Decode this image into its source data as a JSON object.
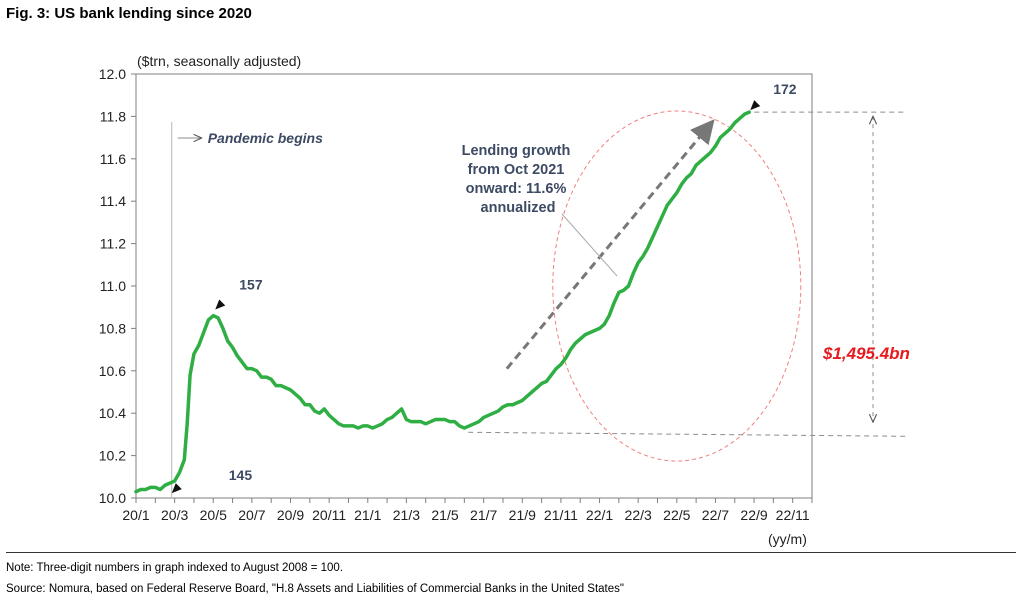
{
  "figure": {
    "title": "Fig. 3: US bank lending since 2020",
    "note": "Note: Three-digit numbers in graph indexed to August 2008 = 100.",
    "source": "Source: Nomura, based on Federal Reserve Board, \"H.8 Assets and Liabilities of Commercial Banks in the United States\""
  },
  "chart_data": {
    "type": "line",
    "title": "US bank lending since 2020",
    "ylabel": "($trn, seasonally adjusted)",
    "xlabel": "(yy/m)",
    "ylim": [
      10.0,
      12.0
    ],
    "yticks": [
      10.0,
      10.2,
      10.4,
      10.6,
      10.8,
      11.0,
      11.2,
      11.4,
      11.6,
      11.8,
      12.0
    ],
    "xlim": [
      0,
      35
    ],
    "xticks": [
      {
        "m": 0,
        "label": "20/1"
      },
      {
        "m": 2,
        "label": "20/3"
      },
      {
        "m": 4,
        "label": "20/5"
      },
      {
        "m": 6,
        "label": "20/7"
      },
      {
        "m": 8,
        "label": "20/9"
      },
      {
        "m": 10,
        "label": "20/11"
      },
      {
        "m": 12,
        "label": "21/1"
      },
      {
        "m": 14,
        "label": "21/3"
      },
      {
        "m": 16,
        "label": "21/5"
      },
      {
        "m": 18,
        "label": "21/7"
      },
      {
        "m": 20,
        "label": "21/9"
      },
      {
        "m": 22,
        "label": "21/11"
      },
      {
        "m": 24,
        "label": "22/1"
      },
      {
        "m": 26,
        "label": "22/3"
      },
      {
        "m": 28,
        "label": "22/5"
      },
      {
        "m": 30,
        "label": "22/7"
      },
      {
        "m": 32,
        "label": "22/9"
      },
      {
        "m": 34,
        "label": "22/11"
      }
    ],
    "series": [
      {
        "name": "US bank lending",
        "color": "#2fae44",
        "points": [
          [
            0,
            10.03
          ],
          [
            0.25,
            10.04
          ],
          [
            0.5,
            10.04
          ],
          [
            0.75,
            10.05
          ],
          [
            1,
            10.05
          ],
          [
            1.25,
            10.04
          ],
          [
            1.5,
            10.06
          ],
          [
            1.75,
            10.07
          ],
          [
            2,
            10.08
          ],
          [
            2.25,
            10.12
          ],
          [
            2.5,
            10.18
          ],
          [
            2.65,
            10.35
          ],
          [
            2.8,
            10.58
          ],
          [
            3,
            10.68
          ],
          [
            3.25,
            10.72
          ],
          [
            3.5,
            10.78
          ],
          [
            3.75,
            10.84
          ],
          [
            4,
            10.86
          ],
          [
            4.25,
            10.85
          ],
          [
            4.5,
            10.8
          ],
          [
            4.75,
            10.74
          ],
          [
            5,
            10.71
          ],
          [
            5.25,
            10.67
          ],
          [
            5.5,
            10.64
          ],
          [
            5.75,
            10.61
          ],
          [
            6,
            10.61
          ],
          [
            6.25,
            10.6
          ],
          [
            6.5,
            10.57
          ],
          [
            6.75,
            10.57
          ],
          [
            7,
            10.56
          ],
          [
            7.25,
            10.53
          ],
          [
            7.5,
            10.53
          ],
          [
            7.75,
            10.52
          ],
          [
            8,
            10.51
          ],
          [
            8.25,
            10.49
          ],
          [
            8.5,
            10.47
          ],
          [
            8.75,
            10.44
          ],
          [
            9,
            10.44
          ],
          [
            9.25,
            10.41
          ],
          [
            9.5,
            10.4
          ],
          [
            9.75,
            10.42
          ],
          [
            10,
            10.39
          ],
          [
            10.25,
            10.37
          ],
          [
            10.5,
            10.35
          ],
          [
            10.75,
            10.34
          ],
          [
            11,
            10.34
          ],
          [
            11.25,
            10.34
          ],
          [
            11.5,
            10.33
          ],
          [
            11.75,
            10.34
          ],
          [
            12,
            10.34
          ],
          [
            12.25,
            10.33
          ],
          [
            12.5,
            10.34
          ],
          [
            12.75,
            10.35
          ],
          [
            13,
            10.37
          ],
          [
            13.25,
            10.38
          ],
          [
            13.5,
            10.4
          ],
          [
            13.75,
            10.42
          ],
          [
            14,
            10.37
          ],
          [
            14.25,
            10.36
          ],
          [
            14.5,
            10.36
          ],
          [
            14.75,
            10.36
          ],
          [
            15,
            10.35
          ],
          [
            15.25,
            10.36
          ],
          [
            15.5,
            10.37
          ],
          [
            15.75,
            10.37
          ],
          [
            16,
            10.37
          ],
          [
            16.25,
            10.36
          ],
          [
            16.5,
            10.36
          ],
          [
            16.75,
            10.34
          ],
          [
            17,
            10.33
          ],
          [
            17.25,
            10.34
          ],
          [
            17.5,
            10.35
          ],
          [
            17.75,
            10.36
          ],
          [
            18,
            10.38
          ],
          [
            18.25,
            10.39
          ],
          [
            18.5,
            10.4
          ],
          [
            18.75,
            10.41
          ],
          [
            19,
            10.43
          ],
          [
            19.25,
            10.44
          ],
          [
            19.5,
            10.44
          ],
          [
            19.75,
            10.45
          ],
          [
            20,
            10.46
          ],
          [
            20.25,
            10.48
          ],
          [
            20.5,
            10.5
          ],
          [
            20.75,
            10.52
          ],
          [
            21,
            10.54
          ],
          [
            21.25,
            10.55
          ],
          [
            21.5,
            10.58
          ],
          [
            21.75,
            10.61
          ],
          [
            22,
            10.63
          ],
          [
            22.25,
            10.66
          ],
          [
            22.5,
            10.7
          ],
          [
            22.75,
            10.73
          ],
          [
            23,
            10.75
          ],
          [
            23.25,
            10.77
          ],
          [
            23.5,
            10.78
          ],
          [
            23.75,
            10.79
          ],
          [
            24,
            10.8
          ],
          [
            24.25,
            10.82
          ],
          [
            24.5,
            10.86
          ],
          [
            24.75,
            10.92
          ],
          [
            25,
            10.97
          ],
          [
            25.25,
            10.98
          ],
          [
            25.5,
            11.0
          ],
          [
            25.75,
            11.06
          ],
          [
            26,
            11.11
          ],
          [
            26.25,
            11.14
          ],
          [
            26.5,
            11.18
          ],
          [
            26.75,
            11.23
          ],
          [
            27,
            11.28
          ],
          [
            27.25,
            11.33
          ],
          [
            27.5,
            11.38
          ],
          [
            27.75,
            11.41
          ],
          [
            28,
            11.44
          ],
          [
            28.25,
            11.48
          ],
          [
            28.5,
            11.51
          ],
          [
            28.75,
            11.53
          ],
          [
            29,
            11.57
          ],
          [
            29.25,
            11.59
          ],
          [
            29.5,
            11.61
          ],
          [
            29.75,
            11.63
          ],
          [
            30,
            11.66
          ],
          [
            30.25,
            11.7
          ],
          [
            30.5,
            11.72
          ],
          [
            30.75,
            11.74
          ],
          [
            31,
            11.77
          ],
          [
            31.25,
            11.79
          ],
          [
            31.5,
            11.81
          ],
          [
            31.75,
            11.82
          ]
        ]
      }
    ],
    "annotations": {
      "pandemic": {
        "m": 1.85,
        "label": "Pandemic begins"
      },
      "idx145": {
        "m": 1.8,
        "y": 10.07,
        "label": "145"
      },
      "idx157": {
        "m": 4.0,
        "y": 10.87,
        "label": "157"
      },
      "idx172": {
        "m": 31.75,
        "y": 11.82,
        "label": "172"
      },
      "growth": {
        "lines": [
          "Lending growth",
          "from Oct 2021",
          "onward: 11.6%",
          "annualized"
        ],
        "arrow_from": [
          19.2,
          10.61
        ],
        "arrow_to": [
          29.8,
          11.77
        ]
      },
      "oct2021_level": {
        "m": 17.2,
        "y": 10.31
      },
      "increase": {
        "label": "$1,495.4bn",
        "color": "#e8191d"
      }
    }
  }
}
